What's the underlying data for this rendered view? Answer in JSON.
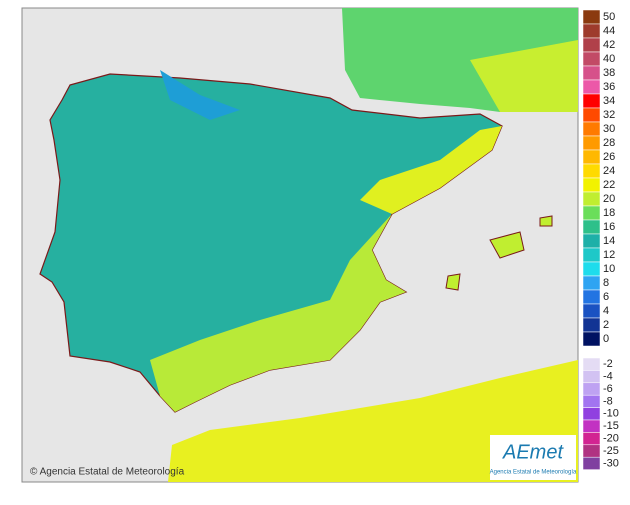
{
  "credit": "© Agencia Estatal de Meteorología",
  "logo": {
    "name": "AEmet",
    "subtitle": "Agencia Estatal de Meteorología"
  },
  "legend": {
    "upper": [
      {
        "label": "50",
        "color": "#8b3a0f"
      },
      {
        "label": "44",
        "color": "#9e3b2c"
      },
      {
        "label": "42",
        "color": "#b0404a"
      },
      {
        "label": "40",
        "color": "#c24a66"
      },
      {
        "label": "38",
        "color": "#d6518a"
      },
      {
        "label": "36",
        "color": "#ec58a8"
      },
      {
        "label": "34",
        "color": "#ff0000"
      },
      {
        "label": "32",
        "color": "#ff4a00"
      },
      {
        "label": "30",
        "color": "#ff7a00"
      },
      {
        "label": "28",
        "color": "#ff9a00"
      },
      {
        "label": "26",
        "color": "#ffb800"
      },
      {
        "label": "24",
        "color": "#ffda00"
      },
      {
        "label": "22",
        "color": "#f2f200"
      },
      {
        "label": "20",
        "color": "#c0ee30"
      },
      {
        "label": "18",
        "color": "#6ade5a"
      },
      {
        "label": "16",
        "color": "#2ec08a"
      },
      {
        "label": "14",
        "color": "#1eb0a8"
      },
      {
        "label": "12",
        "color": "#1ec8c8"
      },
      {
        "label": "10",
        "color": "#1edcec"
      },
      {
        "label": "8",
        "color": "#2ea4f2"
      },
      {
        "label": "6",
        "color": "#2274e2"
      },
      {
        "label": "4",
        "color": "#1a52c2"
      },
      {
        "label": "2",
        "color": "#123494"
      },
      {
        "label": "0",
        "color": "#001262"
      }
    ],
    "lower": [
      {
        "label": "-2",
        "color": "#e4dcf4"
      },
      {
        "label": "-4",
        "color": "#d2c2f2"
      },
      {
        "label": "-6",
        "color": "#bea2f2"
      },
      {
        "label": "-8",
        "color": "#a274f0"
      },
      {
        "label": "-10",
        "color": "#9040e0"
      },
      {
        "label": "-15",
        "color": "#c232c2"
      },
      {
        "label": "-20",
        "color": "#d22492"
      },
      {
        "label": "-25",
        "color": "#b03282"
      },
      {
        "label": "-30",
        "color": "#8040a0"
      }
    ]
  }
}
